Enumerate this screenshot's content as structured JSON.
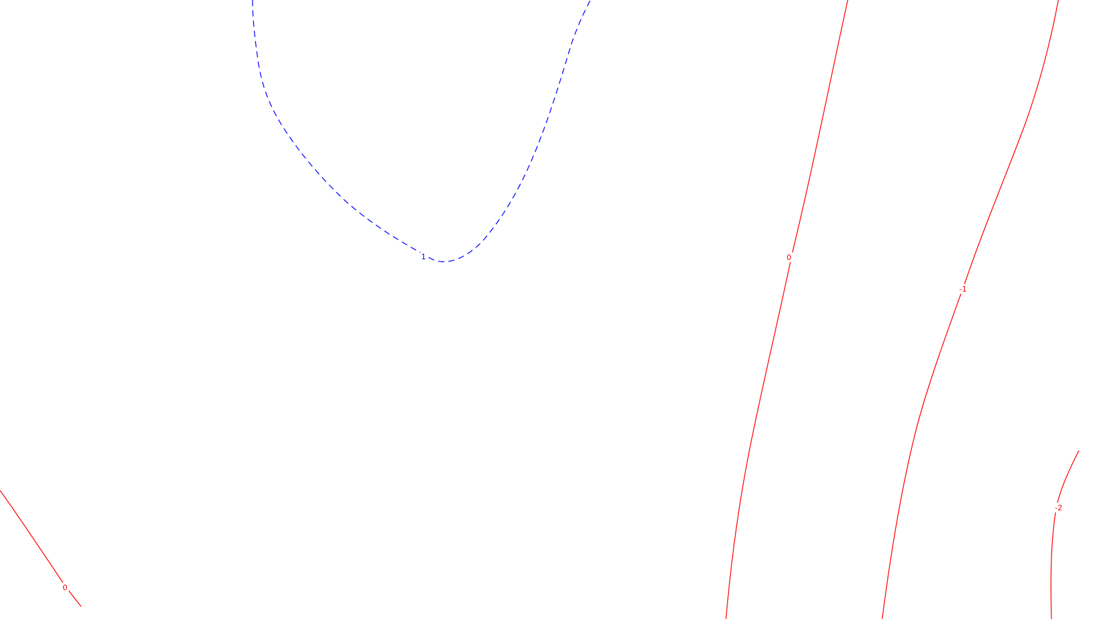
{
  "map": {
    "background": "#ffffff",
    "positive_color": "#0000ff",
    "negative_color": "#ff0000",
    "positive_style": "dashed",
    "zero_and_negative_style": "solid"
  },
  "contours": [
    {
      "id": "contour-plus1",
      "level": "1",
      "color": "#0000ff",
      "style": "dashed"
    },
    {
      "id": "contour-zero-right",
      "level": "0",
      "color": "#ff0000",
      "style": "solid"
    },
    {
      "id": "contour-minus1",
      "level": "-1",
      "color": "#ff0000",
      "style": "solid"
    },
    {
      "id": "contour-minus2",
      "level": "-2",
      "color": "#ff0000",
      "style": "solid"
    },
    {
      "id": "contour-zero-left",
      "level": "0",
      "color": "#ff0000",
      "style": "solid"
    }
  ]
}
